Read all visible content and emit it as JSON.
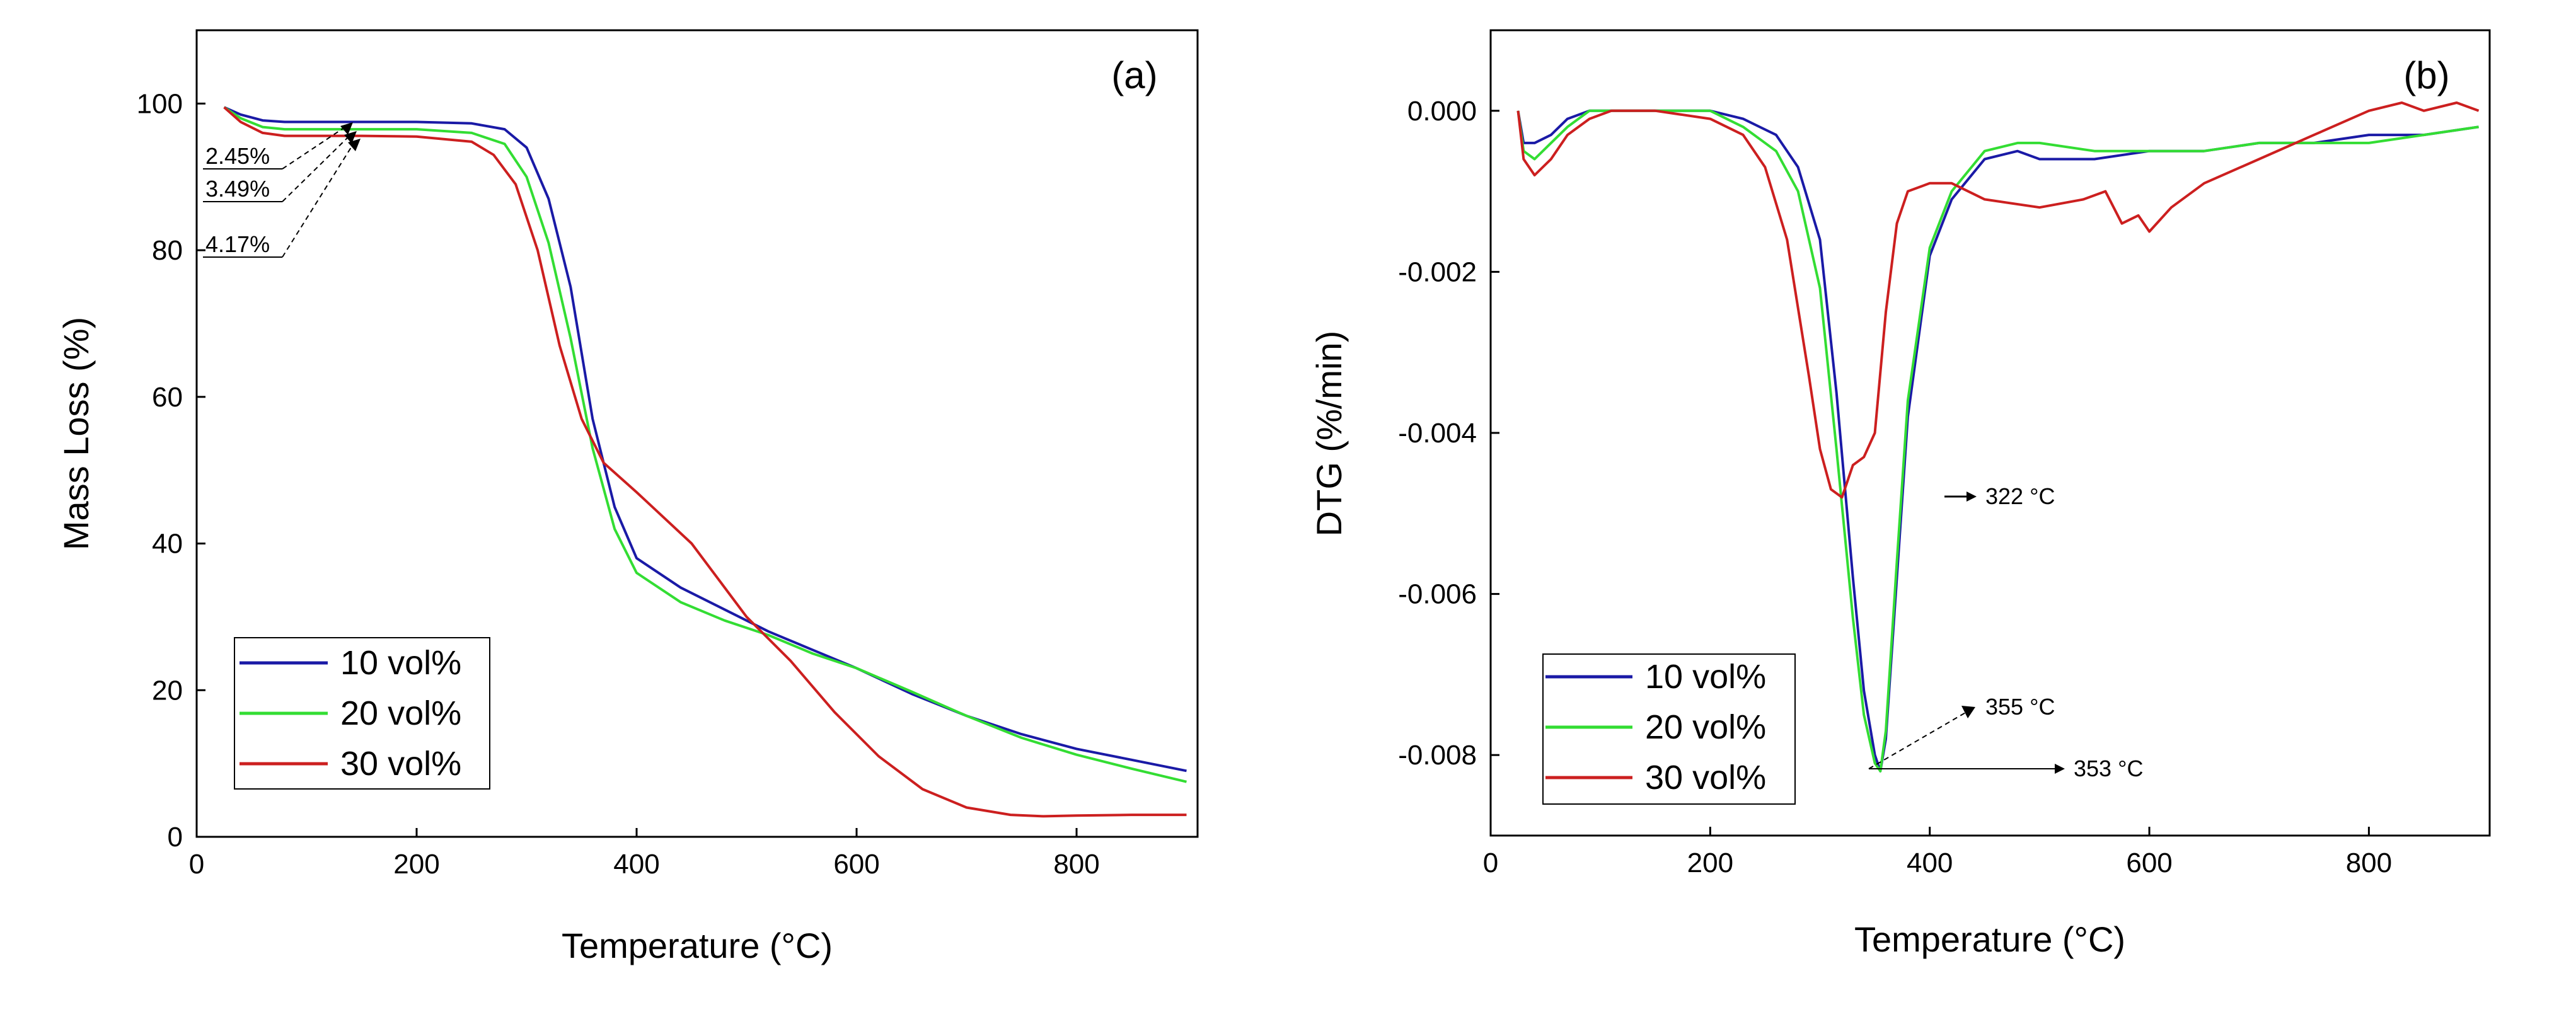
{
  "colors": {
    "s10": "#1a1aa6",
    "s20": "#33dd33",
    "s30": "#cc1f1f"
  },
  "chart_data": [
    {
      "type": "line",
      "panel_label": "(a)",
      "xlabel": "Temperature (°C)",
      "ylabel": "Mass Loss (%)",
      "xlim": [
        0,
        910
      ],
      "ylim": [
        0,
        110
      ],
      "xticks": [
        0,
        200,
        400,
        600,
        800
      ],
      "yticks": [
        0,
        20,
        40,
        60,
        80,
        100
      ],
      "legend_position": "lower-left",
      "series": [
        {
          "name": "10 vol%",
          "color_key": "s10",
          "x": [
            25,
            40,
            60,
            80,
            100,
            150,
            200,
            250,
            280,
            300,
            320,
            340,
            360,
            380,
            400,
            440,
            480,
            520,
            560,
            600,
            650,
            700,
            750,
            800,
            850,
            900
          ],
          "y": [
            99.5,
            98.5,
            97.7,
            97.5,
            97.5,
            97.5,
            97.5,
            97.3,
            96.5,
            94,
            87,
            75,
            57,
            45,
            38,
            34,
            31,
            28,
            25.5,
            23,
            19.5,
            16.5,
            14,
            12,
            10.5,
            9
          ]
        },
        {
          "name": "20 vol%",
          "color_key": "s20",
          "x": [
            25,
            40,
            60,
            80,
            100,
            150,
            200,
            250,
            280,
            300,
            320,
            340,
            360,
            380,
            400,
            440,
            480,
            520,
            560,
            600,
            650,
            700,
            750,
            800,
            850,
            900
          ],
          "y": [
            99.5,
            98,
            96.8,
            96.5,
            96.5,
            96.5,
            96.5,
            96,
            94.5,
            90,
            81,
            68,
            53,
            42,
            36,
            32,
            29.5,
            27.5,
            25,
            23,
            19.8,
            16.5,
            13.5,
            11.2,
            9.3,
            7.5
          ]
        },
        {
          "name": "30 vol%",
          "color_key": "s30",
          "x": [
            25,
            40,
            60,
            80,
            100,
            150,
            200,
            250,
            270,
            290,
            310,
            330,
            350,
            370,
            400,
            450,
            500,
            540,
            580,
            620,
            660,
            700,
            740,
            770,
            800,
            850,
            900
          ],
          "y": [
            99.5,
            97.5,
            96,
            95.6,
            95.6,
            95.6,
            95.5,
            94.8,
            93,
            89,
            80,
            67,
            57,
            51,
            47,
            40,
            30,
            24,
            17,
            11,
            6.5,
            4,
            3,
            2.8,
            2.9,
            3,
            3
          ]
        }
      ],
      "annotations": [
        "2.45%",
        "3.49%",
        "4.17%"
      ]
    },
    {
      "type": "line",
      "panel_label": "(b)",
      "xlabel": "Temperature (°C)",
      "ylabel": "DTG (%/min)",
      "xlim": [
        0,
        910
      ],
      "ylim": [
        -0.009,
        0.001
      ],
      "xticks": [
        0,
        200,
        400,
        600,
        800
      ],
      "yticks": [
        "0.000",
        "-0.002",
        "-0.004",
        "-0.006",
        "-0.008"
      ],
      "ytick_values": [
        0,
        -0.002,
        -0.004,
        -0.006,
        -0.008
      ],
      "legend_position": "lower-left",
      "series": [
        {
          "name": "10 vol%",
          "color_key": "s10",
          "x": [
            25,
            30,
            40,
            55,
            70,
            90,
            110,
            150,
            200,
            230,
            260,
            280,
            300,
            315,
            330,
            340,
            350,
            355,
            360,
            370,
            380,
            400,
            420,
            450,
            480,
            500,
            550,
            600,
            650,
            700,
            750,
            800,
            850,
            900
          ],
          "y": [
            0,
            -0.0004,
            -0.0004,
            -0.0003,
            -0.0001,
            0,
            0,
            0,
            0,
            -0.0001,
            -0.0003,
            -0.0007,
            -0.0016,
            -0.0035,
            -0.0058,
            -0.0072,
            -0.008,
            -0.0082,
            -0.0078,
            -0.0058,
            -0.0038,
            -0.0018,
            -0.0011,
            -0.0006,
            -0.0005,
            -0.0006,
            -0.0006,
            -0.0005,
            -0.0005,
            -0.0004,
            -0.0004,
            -0.0003,
            -0.0003,
            -0.0002
          ]
        },
        {
          "name": "20 vol%",
          "color_key": "s20",
          "x": [
            25,
            30,
            40,
            55,
            70,
            90,
            110,
            150,
            200,
            230,
            260,
            280,
            300,
            315,
            330,
            340,
            350,
            355,
            360,
            370,
            380,
            400,
            420,
            450,
            480,
            500,
            550,
            600,
            650,
            700,
            750,
            800,
            850,
            900
          ],
          "y": [
            0,
            -0.0005,
            -0.0006,
            -0.0004,
            -0.0002,
            0,
            0,
            0,
            0,
            -0.0002,
            -0.0005,
            -0.001,
            -0.0022,
            -0.0042,
            -0.0063,
            -0.0075,
            -0.0081,
            -0.0082,
            -0.0077,
            -0.0056,
            -0.0036,
            -0.0017,
            -0.001,
            -0.0005,
            -0.0004,
            -0.0004,
            -0.0005,
            -0.0005,
            -0.0005,
            -0.0004,
            -0.0004,
            -0.0004,
            -0.0003,
            -0.0002
          ]
        },
        {
          "name": "30 vol%",
          "color_key": "s30",
          "x": [
            25,
            30,
            40,
            55,
            70,
            90,
            110,
            150,
            200,
            230,
            250,
            270,
            290,
            300,
            310,
            320,
            325,
            330,
            340,
            350,
            360,
            370,
            380,
            400,
            420,
            450,
            500,
            540,
            560,
            575,
            590,
            600,
            620,
            650,
            700,
            750,
            800,
            830,
            850,
            880,
            900
          ],
          "y": [
            0,
            -0.0006,
            -0.0008,
            -0.0006,
            -0.0003,
            -0.0001,
            0,
            0,
            -0.0001,
            -0.0003,
            -0.0007,
            -0.0016,
            -0.0033,
            -0.0042,
            -0.0047,
            -0.0048,
            -0.0046,
            -0.0044,
            -0.0043,
            -0.004,
            -0.0025,
            -0.0014,
            -0.001,
            -0.0009,
            -0.0009,
            -0.0011,
            -0.0012,
            -0.0011,
            -0.001,
            -0.0014,
            -0.0013,
            -0.0015,
            -0.0012,
            -0.0009,
            -0.0006,
            -0.0003,
            0,
            0.0001,
            0,
            0.0001,
            0
          ]
        }
      ],
      "annotations": [
        "322 °C",
        "355 °C",
        "353 °C"
      ]
    }
  ]
}
